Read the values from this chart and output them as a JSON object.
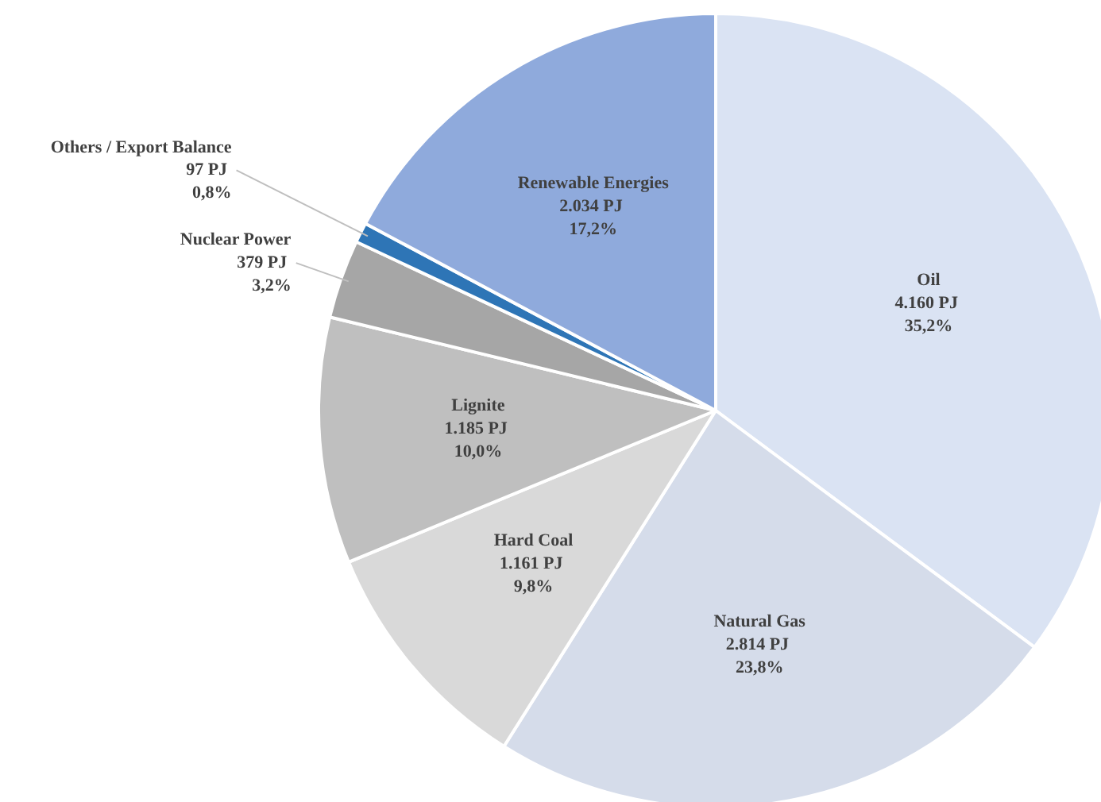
{
  "chart_data": {
    "type": "pie",
    "categories": [
      "Oil",
      "Natural Gas",
      "Hard Coal",
      "Lignite",
      "Nuclear Power",
      "Others / Export Balance",
      "Renewable Energies"
    ],
    "values": [
      4160,
      2814,
      1161,
      1185,
      379,
      97,
      2034
    ],
    "value_labels": [
      "4.160  PJ\n35,2%",
      "2.814  PJ\n23,8%",
      "1.161  PJ\n9,8%",
      "1.185  PJ\n10,0%",
      "379  PJ\n3,2%",
      "97  PJ\n0,8%",
      "2.034  PJ\n17,2%"
    ],
    "colors": [
      "#dae3f3",
      "#d5dcea",
      "#d9d9d9",
      "#bfbfbf",
      "#a6a6a6",
      "#2e75b6",
      "#8faadc"
    ]
  }
}
